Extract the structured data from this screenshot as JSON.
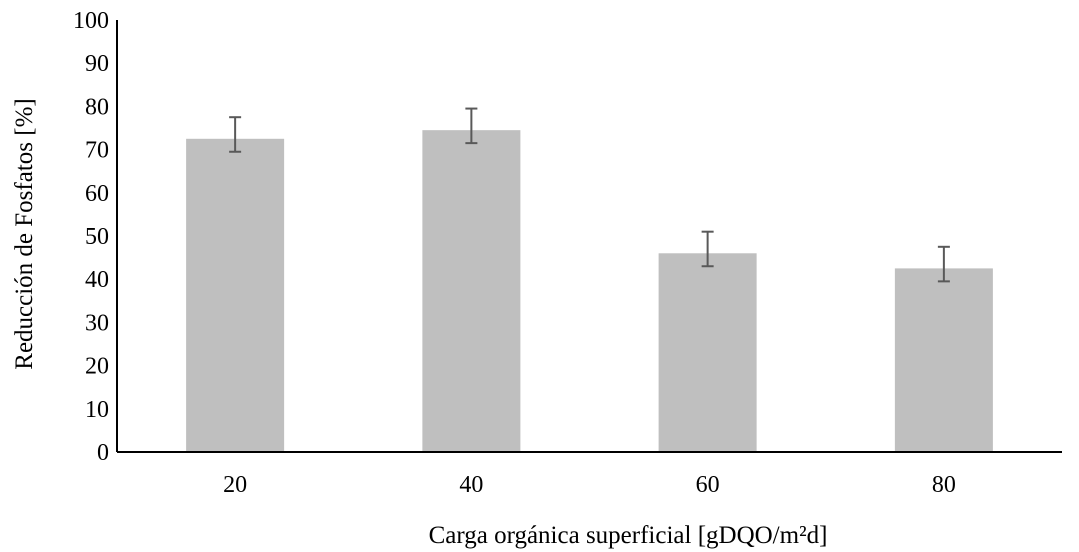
{
  "chart_data": {
    "type": "bar",
    "categories": [
      "20",
      "40",
      "60",
      "80"
    ],
    "values": [
      72.5,
      74.5,
      46.0,
      42.5
    ],
    "error_plus": [
      5.0,
      5.0,
      5.0,
      5.0
    ],
    "error_minus": [
      3.0,
      3.0,
      3.0,
      3.0
    ],
    "title": "",
    "xlabel": "Carga orgánica superficial [gDQO/m²d]",
    "ylabel": "Reducción de Fosfatos [%]",
    "ylim": [
      0,
      100
    ],
    "yticks": [
      0,
      10,
      20,
      30,
      40,
      50,
      60,
      70,
      80,
      90,
      100
    ],
    "grid": false,
    "legend": "none",
    "colors": {
      "bar": "#bfbfbf",
      "error_bar": "#595959",
      "axis": "#000000"
    }
  }
}
